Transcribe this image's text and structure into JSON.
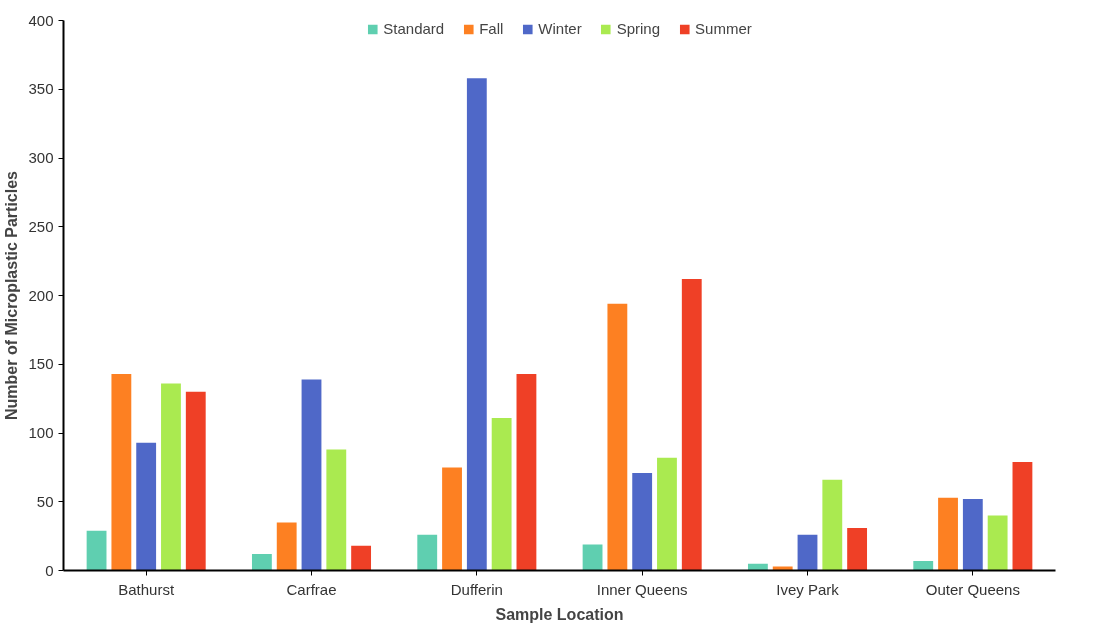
{
  "chart_data": {
    "type": "bar",
    "xlabel": "Sample Location",
    "ylabel": "Number of Microplastic Particles",
    "categories": [
      "Bathurst",
      "Carfrae",
      "Dufferin",
      "Inner Queens",
      "Ivey Park",
      "Outer Queens"
    ],
    "series": [
      {
        "name": "Standard",
        "color": "#5fcfb0",
        "values": [
          29,
          12,
          26,
          19,
          5,
          7
        ]
      },
      {
        "name": "Fall",
        "color": "#fd8022",
        "values": [
          143,
          35,
          75,
          194,
          3,
          53
        ]
      },
      {
        "name": "Winter",
        "color": "#4f68c8",
        "values": [
          93,
          139,
          358,
          71,
          26,
          52
        ]
      },
      {
        "name": "Spring",
        "color": "#aaea50",
        "values": [
          136,
          88,
          111,
          82,
          66,
          40
        ]
      },
      {
        "name": "Summer",
        "color": "#ef4026",
        "values": [
          130,
          18,
          143,
          212,
          31,
          79
        ]
      }
    ],
    "ylim": [
      0,
      400
    ],
    "yticks": [
      0,
      50,
      100,
      150,
      200,
      250,
      300,
      350,
      400
    ],
    "grid": false,
    "legend": "top"
  }
}
